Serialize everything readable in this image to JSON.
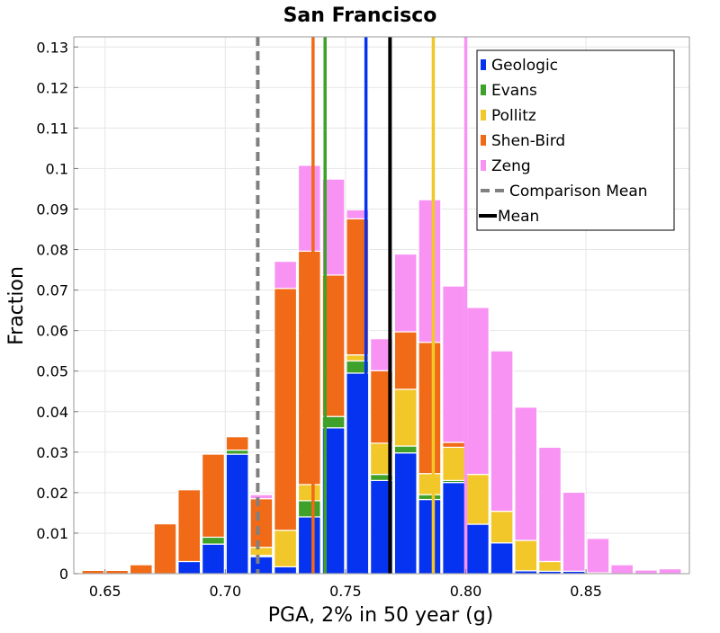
{
  "chart_data": {
    "type": "bar",
    "title": "San Francisco",
    "xlabel": "PGA, 2% in 50 year (g)",
    "ylabel": "Fraction",
    "xlim": [
      0.637,
      0.893
    ],
    "ylim": [
      0,
      0.1325
    ],
    "bin_width": 0.01,
    "x_ticks": [
      "0.65",
      "0.70",
      "0.75",
      "0.80",
      "0.85"
    ],
    "x_tick_values": [
      0.65,
      0.7,
      0.75,
      0.8,
      0.85
    ],
    "y_ticks": [
      "0",
      "0.01",
      "0.02",
      "0.03",
      "0.04",
      "0.05",
      "0.06",
      "0.07",
      "0.08",
      "0.09",
      "0.1",
      "0.11",
      "0.12",
      "0.13"
    ],
    "y_tick_values": [
      0,
      0.01,
      0.02,
      0.03,
      0.04,
      0.05,
      0.06,
      0.07,
      0.08,
      0.09,
      0.1,
      0.11,
      0.12,
      0.13
    ],
    "grid": true,
    "legend_position": "top-right",
    "bin_centers": [
      0.645,
      0.655,
      0.665,
      0.675,
      0.685,
      0.695,
      0.705,
      0.715,
      0.725,
      0.735,
      0.745,
      0.755,
      0.765,
      0.775,
      0.785,
      0.795,
      0.805,
      0.815,
      0.825,
      0.835,
      0.845,
      0.855,
      0.865,
      0.875,
      0.885
    ],
    "series": [
      {
        "name": "Geologic",
        "color": "#0533f0",
        "values": [
          0,
          0,
          0,
          0,
          0.003,
          0.0073,
          0.0295,
          0.0042,
          0.0017,
          0.014,
          0.036,
          0.0495,
          0.023,
          0.0298,
          0.0183,
          0.0225,
          0.0122,
          0.0076,
          0.0007,
          0.0006,
          0.0006,
          0.0002,
          0,
          0,
          0
        ]
      },
      {
        "name": "Evans",
        "color": "#3fa02a",
        "values": [
          0,
          0,
          0,
          0,
          0,
          0.0017,
          0.001,
          0.0003,
          0,
          0.004,
          0.0028,
          0.003,
          0.0015,
          0.0017,
          0.0012,
          0.0005,
          0,
          0,
          0,
          0,
          0,
          0,
          0,
          0,
          0
        ]
      },
      {
        "name": "Pollitz",
        "color": "#f1c72a",
        "values": [
          0,
          0,
          0,
          0,
          0,
          0,
          0,
          0.002,
          0.009,
          0.004,
          0,
          0.0015,
          0.0077,
          0.014,
          0.0052,
          0.0082,
          0.0123,
          0.0078,
          0.0075,
          0.0024,
          0,
          0,
          0,
          0,
          0
        ]
      },
      {
        "name": "Shen-Bird",
        "color": "#f06a17",
        "values": [
          0.0008,
          0.0008,
          0.0022,
          0.0123,
          0.0177,
          0.0205,
          0.0033,
          0.012,
          0.0597,
          0.0576,
          0.0349,
          0.0336,
          0.0179,
          0.0142,
          0.0324,
          0.0012,
          0,
          0,
          0,
          0,
          0,
          0,
          0,
          0,
          0
        ]
      },
      {
        "name": "Zeng",
        "color": "#f893f4",
        "values": [
          0,
          0,
          0,
          0,
          0,
          0,
          0,
          0.001,
          0.0067,
          0.0212,
          0.0237,
          0.0022,
          0.0079,
          0.0192,
          0.0352,
          0.0386,
          0.0412,
          0.0396,
          0.0329,
          0.0282,
          0.0195,
          0.0085,
          0.0022,
          0.0009,
          0.0012
        ]
      }
    ],
    "vertical_lines": [
      {
        "series": "Shen-Bird",
        "x": 0.7365,
        "color": "#f06a17",
        "style": "solid"
      },
      {
        "series": "Evans",
        "x": 0.7415,
        "color": "#3fa02a",
        "style": "solid"
      },
      {
        "series": "Geologic",
        "x": 0.7585,
        "color": "#0533f0",
        "style": "solid"
      },
      {
        "series": "Pollitz",
        "x": 0.7865,
        "color": "#f1c72a",
        "style": "solid"
      },
      {
        "series": "Zeng",
        "x": 0.8,
        "color": "#f893f4",
        "style": "solid"
      },
      {
        "series": "Comparison Mean",
        "x": 0.7135,
        "color": "#808080",
        "style": "dashed"
      },
      {
        "series": "Mean",
        "x": 0.7685,
        "color": "#000000",
        "style": "solid"
      }
    ],
    "legend": [
      {
        "label": "Geologic",
        "color": "#0533f0",
        "kind": "box"
      },
      {
        "label": "Evans",
        "color": "#3fa02a",
        "kind": "box"
      },
      {
        "label": "Pollitz",
        "color": "#f1c72a",
        "kind": "box"
      },
      {
        "label": "Shen-Bird",
        "color": "#f06a17",
        "kind": "box"
      },
      {
        "label": "Zeng",
        "color": "#f893f4",
        "kind": "box"
      },
      {
        "label": "Comparison Mean",
        "color": "#808080",
        "kind": "dashed-line"
      },
      {
        "label": "Mean",
        "color": "#000000",
        "kind": "line"
      }
    ]
  }
}
